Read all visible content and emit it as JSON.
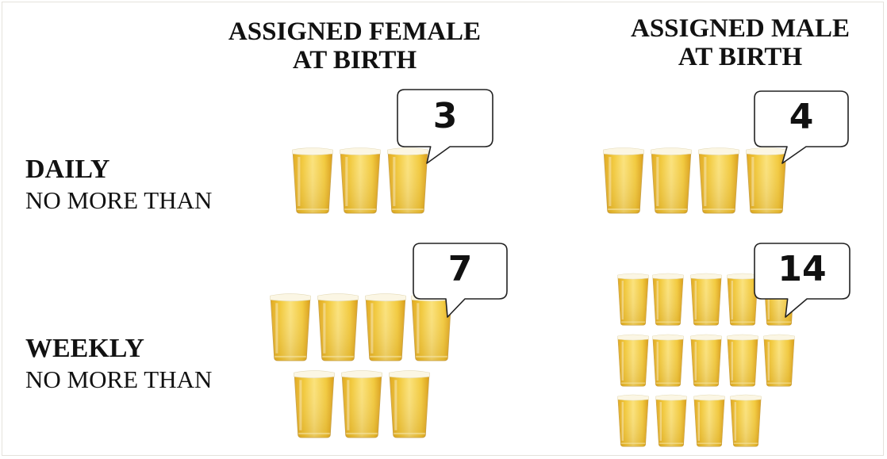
{
  "headers": {
    "female": [
      "ASSIGNED FEMALE",
      "AT BIRTH"
    ],
    "male": [
      "ASSIGNED MALE",
      "AT BIRTH"
    ]
  },
  "rows": {
    "daily": {
      "label": "DAILY",
      "sublabel": "NO MORE THAN"
    },
    "weekly": {
      "label": "WEEKLY",
      "sublabel": "NO MORE THAN"
    }
  },
  "limits": {
    "female_daily": "3",
    "male_daily": "4",
    "female_weekly": "7",
    "male_weekly": "14"
  },
  "icons": {
    "glass": "beer-glass-icon",
    "bubble": "speech-bubble-icon"
  },
  "colors": {
    "beer": "#f2c93a",
    "foam": "#fbf6e4",
    "text": "#111111"
  }
}
